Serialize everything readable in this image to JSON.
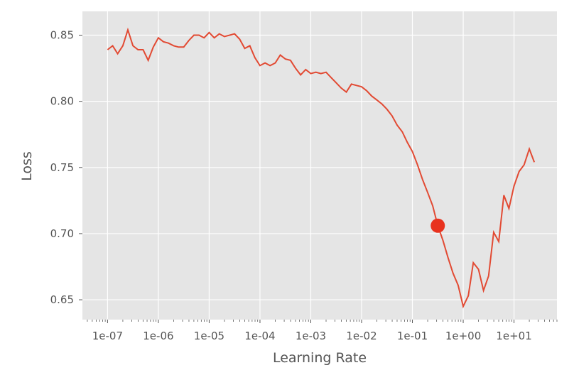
{
  "chart_data": {
    "type": "line",
    "xlabel": "Learning Rate",
    "ylabel": "Loss",
    "x_scale": "log",
    "xlim": [
      3.2e-08,
      70.0
    ],
    "ylim": [
      0.635,
      0.868
    ],
    "grid": true,
    "background_color": "#E5E5E5",
    "line_color": "#E24A33",
    "marker_color": "#E8321E",
    "x_ticks": [
      {
        "value": 1e-07,
        "label": "1e-07"
      },
      {
        "value": 1e-06,
        "label": "1e-06"
      },
      {
        "value": 1e-05,
        "label": "1e-05"
      },
      {
        "value": 0.0001,
        "label": "1e-04"
      },
      {
        "value": 0.001,
        "label": "1e-03"
      },
      {
        "value": 0.01,
        "label": "1e-02"
      },
      {
        "value": 0.1,
        "label": "1e-01"
      },
      {
        "value": 1,
        "label": "1e+00"
      },
      {
        "value": 10,
        "label": "1e+01"
      }
    ],
    "y_ticks": [
      {
        "value": 0.65,
        "label": "0.65"
      },
      {
        "value": 0.7,
        "label": "0.70"
      },
      {
        "value": 0.75,
        "label": "0.75"
      },
      {
        "value": 0.8,
        "label": "0.80"
      },
      {
        "value": 0.85,
        "label": "0.85"
      }
    ],
    "x": [
      1e-07,
      1.26e-07,
      1.58e-07,
      2e-07,
      2.51e-07,
      3.16e-07,
      3.98e-07,
      5.01e-07,
      6.31e-07,
      7.94e-07,
      1e-06,
      1.26e-06,
      1.58e-06,
      2e-06,
      2.51e-06,
      3.16e-06,
      3.98e-06,
      5.01e-06,
      6.31e-06,
      7.94e-06,
      1e-05,
      1.26e-05,
      1.58e-05,
      2e-05,
      2.51e-05,
      3.16e-05,
      3.98e-05,
      5.01e-05,
      6.31e-05,
      7.94e-05,
      0.0001,
      0.000126,
      0.000158,
      0.0002,
      0.000251,
      0.000316,
      0.000398,
      0.000501,
      0.000631,
      0.000794,
      0.001,
      0.00126,
      0.00158,
      0.002,
      0.00251,
      0.00316,
      0.00398,
      0.00501,
      0.00631,
      0.00794,
      0.01,
      0.0126,
      0.0158,
      0.02,
      0.0251,
      0.0316,
      0.0398,
      0.0501,
      0.0631,
      0.0794,
      0.1,
      0.126,
      0.158,
      0.2,
      0.251,
      0.316,
      0.398,
      0.501,
      0.631,
      0.794,
      1.0,
      1.26,
      1.58,
      2.0,
      2.51,
      3.16,
      3.98,
      5.01,
      6.31,
      7.94,
      10.0,
      12.6,
      15.8,
      20.0,
      25.1
    ],
    "series": [
      {
        "values": [
          0.839,
          0.842,
          0.836,
          0.842,
          0.854,
          0.842,
          0.839,
          0.839,
          0.831,
          0.841,
          0.848,
          0.845,
          0.844,
          0.842,
          0.841,
          0.841,
          0.846,
          0.85,
          0.85,
          0.848,
          0.852,
          0.848,
          0.851,
          0.849,
          0.85,
          0.851,
          0.847,
          0.84,
          0.842,
          0.833,
          0.827,
          0.829,
          0.827,
          0.829,
          0.835,
          0.832,
          0.831,
          0.825,
          0.82,
          0.824,
          0.821,
          0.822,
          0.821,
          0.822,
          0.818,
          0.814,
          0.81,
          0.807,
          0.813,
          0.812,
          0.811,
          0.808,
          0.804,
          0.801,
          0.798,
          0.794,
          0.789,
          0.782,
          0.777,
          0.769,
          0.762,
          0.752,
          0.741,
          0.731,
          0.721,
          0.706,
          0.695,
          0.682,
          0.67,
          0.661,
          0.645,
          0.653,
          0.678,
          0.673,
          0.657,
          0.668,
          0.701,
          0.694,
          0.729,
          0.719,
          0.736,
          0.747,
          0.752,
          0.764,
          0.754
        ]
      }
    ],
    "suggested_point": {
      "x": 0.316,
      "y": 0.706
    }
  }
}
